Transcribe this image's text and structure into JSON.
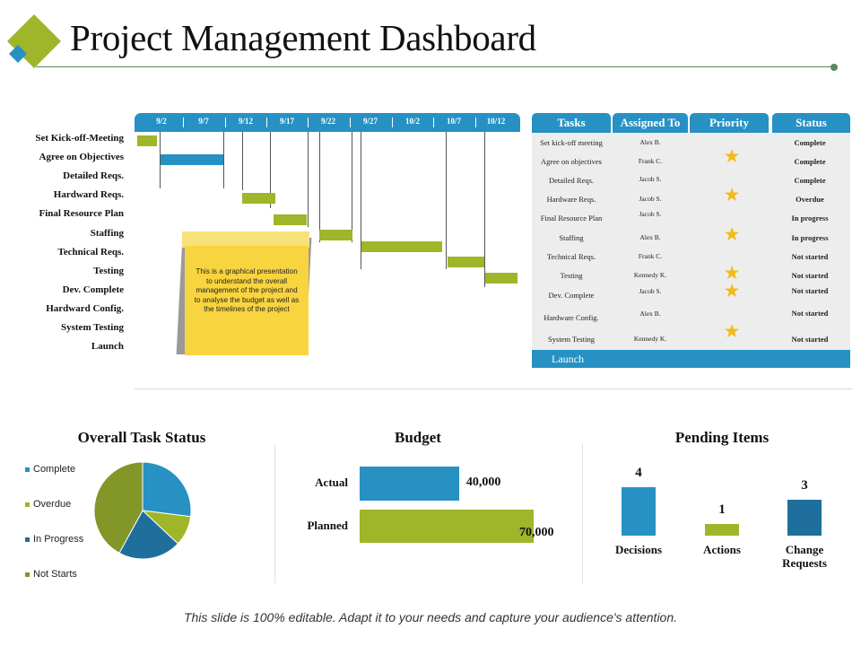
{
  "header": {
    "title": "Project Management Dashboard"
  },
  "colors": {
    "blue": "#2791c4",
    "green": "#9fb52a",
    "dark_blue": "#1f6f9d",
    "olive": "#839628",
    "star": "#f3bb16",
    "note": "#f8d43e"
  },
  "gantt": {
    "dates": [
      "9/2",
      "9/7",
      "9/12",
      "9/17",
      "9/22",
      "9/27",
      "10/2",
      "10/7",
      "10/12"
    ],
    "tasks": [
      "Set Kick-off-Meeting",
      "Agree on Objectives",
      "Detailed Reqs.",
      "Hardward Reqs.",
      "Final Resource Plan",
      "Staffing",
      "Technical Reqs.",
      "Testing",
      "Dev. Complete",
      "Hardward Config.",
      "System Testing",
      "Launch"
    ]
  },
  "note": {
    "text": "This is a graphical presentation to understand the overall management of the project and to analyse the budget as well as the timelines of the project"
  },
  "task_table": {
    "headers": [
      "Tasks",
      "Assigned To",
      "Priority",
      "Status"
    ],
    "rows": [
      {
        "task": "Set kick-off meeting",
        "assigned": "Alex B.",
        "status": "Complete"
      },
      {
        "task": "Agree on objectives",
        "assigned": "Frank C.",
        "status": "Complete"
      },
      {
        "task": "Detailed Reqs.",
        "assigned": "Jacob S.",
        "status": "Complete"
      },
      {
        "task": "Hardware Reqs.",
        "assigned": "Jacob S.",
        "status": "Overdue"
      },
      {
        "task": "Final Resource Plan",
        "assigned": "Jacob S.",
        "status": "In progress"
      },
      {
        "task": "Staffing",
        "assigned": "Alex B.",
        "status": "In progress"
      },
      {
        "task": "Technical Reqs.",
        "assigned": "Frank C.",
        "status": "Not started"
      },
      {
        "task": "Testing",
        "assigned": "Kennedy K.",
        "status": "Not started"
      },
      {
        "task": "Dev. Complete",
        "assigned": "Jacob S.",
        "status": "Not started"
      },
      {
        "task": "Hardware Config.",
        "assigned": "Alex B.",
        "status": "Not started"
      },
      {
        "task": "System Testing",
        "assigned": "Kennedy K.",
        "status": "Not started"
      }
    ],
    "priority_icon": "star-icon",
    "footer": "Launch"
  },
  "chart_data": [
    {
      "type": "pie",
      "title": "Overall Task Status",
      "categories": [
        "Complete",
        "Overdue",
        "In Progress",
        "Not Starts"
      ],
      "values": [
        27,
        10,
        21,
        42
      ]
    },
    {
      "type": "bar",
      "title": "Budget",
      "categories": [
        "Actual",
        "Planned"
      ],
      "values": [
        40000,
        70000
      ],
      "value_labels": [
        "40,000",
        "70,000"
      ]
    },
    {
      "type": "bar",
      "title": "Pending Items",
      "categories": [
        "Decisions",
        "Actions",
        "Change Requests"
      ],
      "values": [
        4,
        1,
        3
      ]
    }
  ],
  "footer": {
    "text": "This slide is 100% editable. Adapt it to your needs and capture your audience's attention."
  }
}
